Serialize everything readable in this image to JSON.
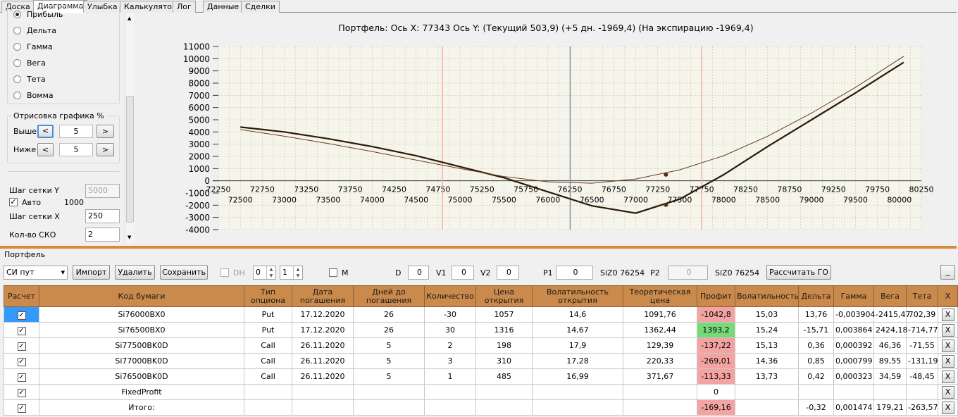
{
  "tabs": [
    {
      "label": "Доска",
      "active": false
    },
    {
      "label": "Диаграмма",
      "active": true
    },
    {
      "label": "Улыбка",
      "active": false
    },
    {
      "label": "Калькулятор",
      "active": false
    },
    {
      "label": "Лог",
      "active": false
    },
    {
      "label": "Данные",
      "active": false
    },
    {
      "label": "Сделки",
      "active": false
    }
  ],
  "left": {
    "radios": [
      "Прибыль",
      "Дельта",
      "Гамма",
      "Вега",
      "Тета",
      "Вомма"
    ],
    "selected_radio": "Прибыль",
    "render_group_title": "Отрисовка графика %",
    "above_label": "Выше",
    "above_value": "5",
    "below_label": "Ниже",
    "below_value": "5",
    "btn_prev": "<",
    "btn_next": ">",
    "grid_y_label": "Шаг сетки Y",
    "grid_y_value": "5000",
    "auto_label": "Авто",
    "auto_value": "1000",
    "grid_x_label": "Шаг сетки X",
    "grid_x_value": "250",
    "sko_label": "Кол-во СКО",
    "sko_value": "2"
  },
  "chart_data": {
    "type": "line",
    "title": "Портфель: Ось X: 77343 Ось Y:  (Текущий 503,9)  (+5 дн. -1969,4)  (На экспирацию -1969,4)",
    "xlim": [
      72250,
      80250
    ],
    "ylim": [
      -4000,
      11000
    ],
    "x_ticks_upper": [
      72250,
      72750,
      73250,
      73750,
      74250,
      74750,
      75250,
      75750,
      76250,
      76750,
      77250,
      77750,
      78250,
      78750,
      79250,
      79750,
      80250
    ],
    "x_ticks_lower": [
      72500,
      73000,
      73500,
      74000,
      74500,
      75000,
      75500,
      76000,
      76500,
      77000,
      77500,
      78000,
      78500,
      79000,
      79500,
      80000
    ],
    "y_ticks": [
      11000,
      10000,
      9000,
      8000,
      7000,
      6000,
      5000,
      4000,
      3000,
      2000,
      1000,
      0,
      -1000,
      -2000,
      -3000,
      -4000
    ],
    "current_price_line": 76254,
    "sko_lines": [
      74800,
      77750
    ],
    "series": [
      {
        "color": "#2a1a0a",
        "width": 2.2,
        "x": [
          72500,
          73000,
          73500,
          74000,
          74500,
          75000,
          75500,
          76000,
          76500,
          77000,
          77500,
          78000,
          78500,
          79000,
          79500,
          80050
        ],
        "y": [
          4400,
          4000,
          3450,
          2800,
          2050,
          1150,
          250,
          -900,
          -2050,
          -2650,
          -1500,
          500,
          2800,
          5000,
          7200,
          9700
        ]
      },
      {
        "color": "#6b3a1f",
        "width": 1,
        "x": [
          72500,
          73000,
          73500,
          74000,
          74500,
          75000,
          75500,
          76000,
          76500,
          77000,
          77500,
          78000,
          78500,
          79000,
          79500,
          80050
        ],
        "y": [
          4200,
          3650,
          3050,
          2400,
          1700,
          1000,
          350,
          -80,
          -200,
          150,
          900,
          2050,
          3650,
          5550,
          7650,
          10200
        ]
      }
    ],
    "markers": [
      {
        "x": 77343,
        "y": 503.9
      },
      {
        "x": 77343,
        "y": -1969.4
      }
    ]
  },
  "portfolio": {
    "label": "Портфель",
    "combo_value": "СИ пут",
    "import_label": "Импорт",
    "delete_label": "Удалить",
    "save_label": "Сохранить",
    "dh_label": "DH",
    "spin1": "0",
    "spin2": "1",
    "m_label": "M",
    "d_label": "D",
    "d_value": "0",
    "v1_label": "V1",
    "v1_value": "0",
    "v2_label": "V2",
    "v2_value": "0",
    "p1_label": "P1",
    "p1_value": "0",
    "p1_symbol": "SiZ0 76254",
    "p2_label": "P2",
    "p2_value": "0",
    "p2_symbol": "SiZ0 76254",
    "calc_go_label": "Рассчитать ГО",
    "minimize_label": "_"
  },
  "table": {
    "headers": [
      "Расчет",
      "Код бумаги",
      "Тип опциона",
      "Дата погашения",
      "Дней до погашения",
      "Количество",
      "Цена открытия",
      "Волатильность открытия",
      "Теоретическая цена",
      "Профит",
      "Волатильность",
      "Дельта",
      "Гамма",
      "Вега",
      "Тета",
      "X"
    ],
    "rows": [
      {
        "checked": true,
        "cells": [
          "Si76000BX0",
          "Put",
          "17.12.2020",
          "26",
          "-30",
          "1057",
          "14,6",
          "1091,76",
          "-1042,8",
          "15,03",
          "13,76",
          "-0,003904",
          "-2415,47",
          "702,39"
        ],
        "profit_state": "neg",
        "selected": true
      },
      {
        "checked": true,
        "cells": [
          "Si76500BX0",
          "Put",
          "17.12.2020",
          "26",
          "30",
          "1316",
          "14,67",
          "1362,44",
          "1393,2",
          "15,24",
          "-15,71",
          "0,003864",
          "2424,18",
          "-714,77"
        ],
        "profit_state": "pos",
        "selected": false
      },
      {
        "checked": true,
        "cells": [
          "Si77500BK0D",
          "Call",
          "26.11.2020",
          "5",
          "2",
          "198",
          "17,9",
          "129,39",
          "-137,22",
          "15,13",
          "0,36",
          "0,000392",
          "46,36",
          "-71,55"
        ],
        "profit_state": "neg",
        "selected": false
      },
      {
        "checked": true,
        "cells": [
          "Si77000BK0D",
          "Call",
          "26.11.2020",
          "5",
          "3",
          "310",
          "17,28",
          "220,33",
          "-269,01",
          "14,36",
          "0,85",
          "0,000799",
          "89,55",
          "-131,19"
        ],
        "profit_state": "neg",
        "selected": false
      },
      {
        "checked": true,
        "cells": [
          "Si76500BK0D",
          "Call",
          "26.11.2020",
          "5",
          "1",
          "485",
          "16,99",
          "371,67",
          "-113,33",
          "13,73",
          "0,42",
          "0,000323",
          "34,59",
          "-48,45"
        ],
        "profit_state": "neg",
        "selected": false
      },
      {
        "checked": true,
        "cells": [
          "FixedProfit",
          "",
          "",
          "",
          "",
          "",
          "",
          "",
          "0",
          "",
          "",
          "",
          "",
          ""
        ],
        "profit_state": "none",
        "selected": false
      },
      {
        "checked": true,
        "cells": [
          "Итого:",
          "",
          "",
          "",
          "",
          "",
          "",
          "",
          "-169,16",
          "",
          "-0,32",
          "0,001474",
          "179,21",
          "-263,57"
        ],
        "profit_state": "neg",
        "selected": false
      }
    ],
    "delete_label": "X"
  }
}
